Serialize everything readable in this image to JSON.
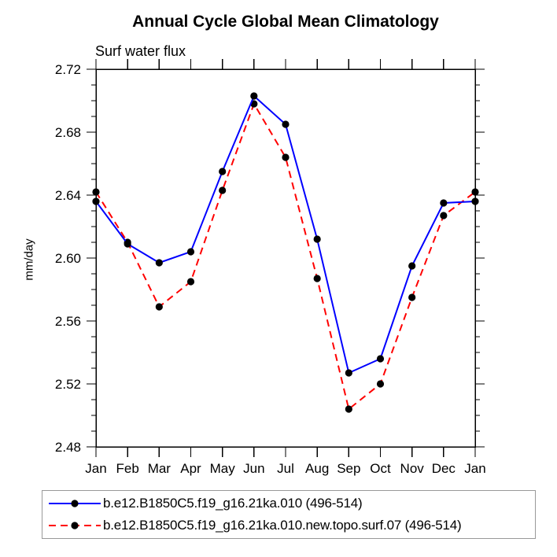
{
  "title": "Annual Cycle Global Mean Climatology",
  "subtitle": "Surf water flux",
  "ylabel": "mm/day",
  "colors": {
    "series1": "#0000ff",
    "series2": "#ff0000",
    "marker": "#000000",
    "axis": "#000000"
  },
  "legend": {
    "entries": [
      {
        "label": "b.e12.B1850C5.f19_g16.21ka.010 (496-514)",
        "color": "#0000ff",
        "dash": "none",
        "marker_color": "#000000"
      },
      {
        "label": "b.e12.B1850C5.f19_g16.21ka.010.new.topo.surf.07 (496-514)",
        "color": "#ff0000",
        "dash": "9 6",
        "marker_color": "#000000"
      }
    ]
  },
  "chart_data": {
    "type": "line",
    "title": "Annual Cycle Global Mean Climatology",
    "subtitle": "Surf water flux",
    "xlabel": "",
    "ylabel": "mm/day",
    "categories": [
      "Jan",
      "Feb",
      "Mar",
      "Apr",
      "May",
      "Jun",
      "Jul",
      "Aug",
      "Sep",
      "Oct",
      "Nov",
      "Dec",
      "Jan"
    ],
    "series": [
      {
        "name": "b.e12.B1850C5.f19_g16.21ka.010 (496-514)",
        "color": "#0000ff",
        "style": "solid",
        "marker": "black-dot",
        "values": [
          2.636,
          2.609,
          2.597,
          2.604,
          2.655,
          2.703,
          2.685,
          2.612,
          2.527,
          2.536,
          2.595,
          2.635,
          2.636
        ]
      },
      {
        "name": "b.e12.B1850C5.f19_g16.21ka.010.new.topo.surf.07 (496-514)",
        "color": "#ff0000",
        "style": "dashed",
        "marker": "black-dot",
        "values": [
          2.642,
          2.61,
          2.569,
          2.585,
          2.643,
          2.698,
          2.664,
          2.587,
          2.504,
          2.52,
          2.575,
          2.627,
          2.642
        ]
      }
    ],
    "ylim": [
      2.48,
      2.72
    ],
    "ytick_major": 0.04,
    "ytick_minor": 0.01,
    "ytick_label_decimals": 2,
    "grid": false,
    "frame": "box-with-outward-ticks",
    "legend_position": "bottom"
  }
}
